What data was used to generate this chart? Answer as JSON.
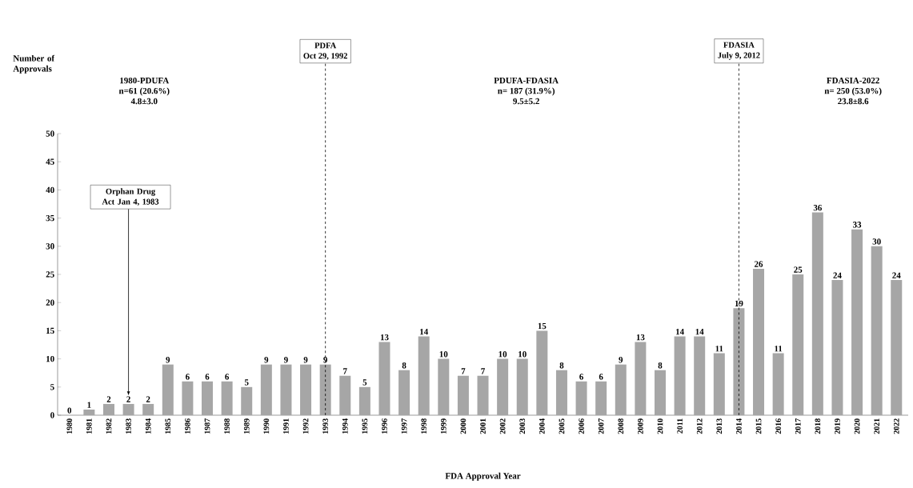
{
  "chart_data": {
    "type": "bar",
    "xlabel": "FDA Approval Year",
    "categories": [
      "1980",
      "1981",
      "1982",
      "1983",
      "1984",
      "1985",
      "1986",
      "1987",
      "1988",
      "1989",
      "1990",
      "1991",
      "1992",
      "1993",
      "1994",
      "1995",
      "1996",
      "1997",
      "1998",
      "1999",
      "2000",
      "2001",
      "2002",
      "2003",
      "2004",
      "2005",
      "2006",
      "2007",
      "2008",
      "2009",
      "2010",
      "2011",
      "2012",
      "2013",
      "2014",
      "2015",
      "2016",
      "2017",
      "2018",
      "2019",
      "2020",
      "2021",
      "2022"
    ],
    "values": [
      0,
      1,
      2,
      2,
      2,
      9,
      6,
      6,
      6,
      5,
      9,
      9,
      9,
      9,
      7,
      5,
      13,
      8,
      14,
      10,
      7,
      7,
      10,
      10,
      15,
      8,
      6,
      6,
      9,
      13,
      8,
      14,
      14,
      11,
      19,
      26,
      11,
      25,
      36,
      24,
      33,
      30,
      24
    ],
    "color": "#a6a6a6",
    "data_labels": true,
    "ylim": [
      0,
      50
    ],
    "yticks": [
      0,
      5,
      10,
      15,
      20,
      25,
      30,
      35,
      40,
      45,
      50
    ],
    "ref_lines": [
      {
        "axis": "x",
        "value": "1993",
        "label": "PDFA",
        "line_style": "dashed",
        "color": "#000000"
      },
      {
        "axis": "x",
        "value": "2014",
        "label": "FDASIA",
        "line_style": "dashed",
        "color": "#000000"
      }
    ],
    "annotations": [
      "Oct 29, 1992",
      "July 9, 2012",
      "Orphan Drug Act Jan 4, 1983",
      "Number of Approvals",
      "1980-PDUFA",
      "n=61 (20.6%)",
      "4.8±3.0",
      "PDUFA-FDASIA",
      "n= 187 (31.9%)",
      "9.5±5.2",
      "FDASIA-2022",
      "n= 250 (53.0%)",
      "23.8±8.6"
    ]
  }
}
